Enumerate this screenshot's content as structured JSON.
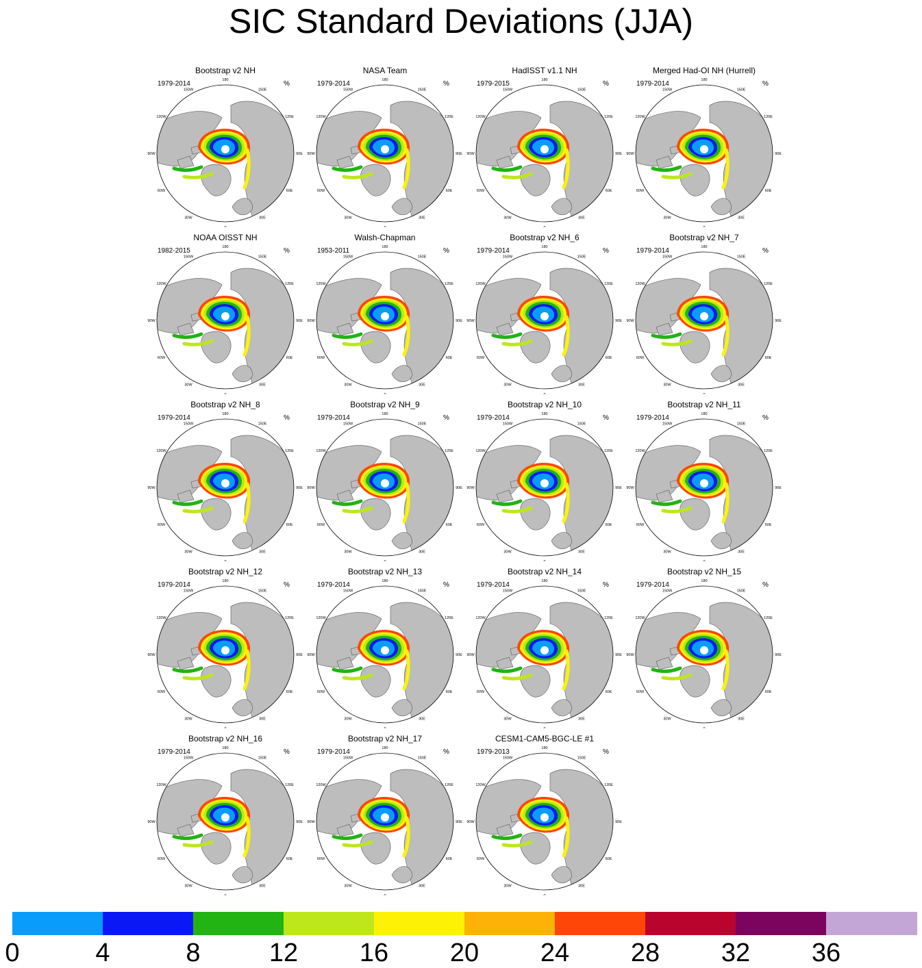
{
  "chart_data": {
    "type": "heatmap",
    "title": "SIC Standard Deviations (JJA)",
    "units": "%",
    "projection": "north polar stereographic",
    "longitude_labels": [
      "180",
      "150E",
      "120E",
      "90E",
      "60E",
      "30E",
      "0",
      "30W",
      "60W",
      "90W",
      "120W",
      "150W"
    ],
    "colorbar": {
      "ticks": [
        "0",
        "4",
        "8",
        "12",
        "16",
        "20",
        "24",
        "28",
        "32",
        "36"
      ],
      "colors": [
        "#0a9cfa",
        "#0a18f6",
        "#21b412",
        "#bde71a",
        "#fdf206",
        "#fdb208",
        "#fd4608",
        "#b9042e",
        "#7c045e",
        "#c4a6d6"
      ]
    },
    "panels": [
      {
        "title": "Bootstrap v2 NH",
        "period": "1979-2014",
        "units": "%"
      },
      {
        "title": "NASA Team",
        "period": "1979-2014",
        "units": "%"
      },
      {
        "title": "HadISST v1.1 NH",
        "period": "1979-2015",
        "units": "%"
      },
      {
        "title": "Merged Had-OI NH (Hurrell)",
        "period": "1979-2014",
        "units": "%"
      },
      {
        "title": "NOAA OISST NH",
        "period": "1982-2015",
        "units": "%"
      },
      {
        "title": "Walsh-Chapman",
        "period": "1953-2011",
        "units": "%"
      },
      {
        "title": "Bootstrap v2 NH_6",
        "period": "1979-2014",
        "units": "%"
      },
      {
        "title": "Bootstrap v2 NH_7",
        "period": "1979-2014",
        "units": "%"
      },
      {
        "title": "Bootstrap v2 NH_8",
        "period": "1979-2014",
        "units": "%"
      },
      {
        "title": "Bootstrap v2 NH_9",
        "period": "1979-2014",
        "units": "%"
      },
      {
        "title": "Bootstrap v2 NH_10",
        "period": "1979-2014",
        "units": "%"
      },
      {
        "title": "Bootstrap v2 NH_11",
        "period": "1979-2014",
        "units": "%"
      },
      {
        "title": "Bootstrap v2 NH_12",
        "period": "1979-2014",
        "units": "%"
      },
      {
        "title": "Bootstrap v2 NH_13",
        "period": "1979-2014",
        "units": "%"
      },
      {
        "title": "Bootstrap v2 NH_14",
        "period": "1979-2014",
        "units": "%"
      },
      {
        "title": "Bootstrap v2 NH_15",
        "period": "1979-2014",
        "units": "%"
      },
      {
        "title": "Bootstrap v2 NH_16",
        "period": "1979-2014",
        "units": "%"
      },
      {
        "title": "Bootstrap v2 NH_17",
        "period": "1979-2014",
        "units": "%"
      },
      {
        "title": "CESM1-CAM5-BGC-LE #1",
        "period": "1979-2013",
        "units": "%"
      }
    ]
  }
}
